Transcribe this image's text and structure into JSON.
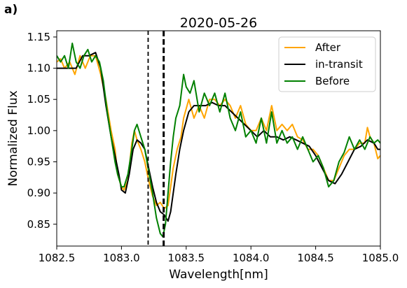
{
  "panel_label": "a)",
  "chart_data": {
    "type": "line",
    "title": "2020-05-26",
    "xlabel": "Wavelength[nm]",
    "ylabel": "Normalized Flux",
    "xlim": [
      1082.5,
      1085.0
    ],
    "ylim": [
      0.815,
      1.16
    ],
    "xticks": [
      1082.5,
      1083.0,
      1083.5,
      1084.0,
      1084.5,
      1085.0
    ],
    "xtick_labels": [
      "1082.5",
      "1083.0",
      "1083.5",
      "1084.0",
      "1084.5",
      "1085.0"
    ],
    "yticks": [
      0.85,
      0.9,
      0.95,
      1.0,
      1.05,
      1.1,
      1.15
    ],
    "ytick_labels": [
      "0.85",
      "0.90",
      "0.95",
      "1.00",
      "1.05",
      "1.10",
      "1.15"
    ],
    "grid": false,
    "legend_position": "top-right",
    "vlines": [
      {
        "x": 1083.206,
        "style": "dashed"
      },
      {
        "x": 1083.326,
        "style": "dashed-thick"
      }
    ],
    "series": [
      {
        "name": "After",
        "color": "#FFA500",
        "points": [
          [
            1082.5,
            1.11
          ],
          [
            1082.53,
            1.115
          ],
          [
            1082.56,
            1.1
          ],
          [
            1082.6,
            1.11
          ],
          [
            1082.64,
            1.09
          ],
          [
            1082.68,
            1.12
          ],
          [
            1082.72,
            1.1
          ],
          [
            1082.76,
            1.12
          ],
          [
            1082.8,
            1.12
          ],
          [
            1082.84,
            1.09
          ],
          [
            1082.88,
            1.05
          ],
          [
            1082.92,
            1.0
          ],
          [
            1082.95,
            0.97
          ],
          [
            1082.97,
            0.93
          ],
          [
            1083.0,
            0.91
          ],
          [
            1083.02,
            0.905
          ],
          [
            1083.05,
            0.92
          ],
          [
            1083.08,
            0.98
          ],
          [
            1083.1,
            1.0
          ],
          [
            1083.12,
            0.985
          ],
          [
            1083.15,
            0.97
          ],
          [
            1083.18,
            0.95
          ],
          [
            1083.21,
            0.92
          ],
          [
            1083.24,
            0.895
          ],
          [
            1083.27,
            0.88
          ],
          [
            1083.3,
            0.885
          ],
          [
            1083.33,
            0.875
          ],
          [
            1083.36,
            0.88
          ],
          [
            1083.38,
            0.91
          ],
          [
            1083.4,
            0.94
          ],
          [
            1083.43,
            0.97
          ],
          [
            1083.46,
            0.99
          ],
          [
            1083.48,
            1.02
          ],
          [
            1083.52,
            1.05
          ],
          [
            1083.56,
            1.02
          ],
          [
            1083.6,
            1.04
          ],
          [
            1083.64,
            1.02
          ],
          [
            1083.68,
            1.05
          ],
          [
            1083.72,
            1.05
          ],
          [
            1083.76,
            1.04
          ],
          [
            1083.8,
            1.05
          ],
          [
            1083.84,
            1.04
          ],
          [
            1083.88,
            1.02
          ],
          [
            1083.92,
            1.04
          ],
          [
            1083.96,
            1.01
          ],
          [
            1084.0,
            1.0
          ],
          [
            1084.04,
            1.0
          ],
          [
            1084.08,
            1.02
          ],
          [
            1084.12,
            1.0
          ],
          [
            1084.16,
            1.04
          ],
          [
            1084.2,
            1.0
          ],
          [
            1084.24,
            1.01
          ],
          [
            1084.28,
            1.0
          ],
          [
            1084.32,
            1.01
          ],
          [
            1084.36,
            0.99
          ],
          [
            1084.4,
            0.985
          ],
          [
            1084.44,
            0.97
          ],
          [
            1084.48,
            0.97
          ],
          [
            1084.52,
            0.96
          ],
          [
            1084.56,
            0.94
          ],
          [
            1084.6,
            0.92
          ],
          [
            1084.64,
            0.92
          ],
          [
            1084.68,
            0.94
          ],
          [
            1084.72,
            0.96
          ],
          [
            1084.76,
            0.97
          ],
          [
            1084.8,
            0.97
          ],
          [
            1084.84,
            0.98
          ],
          [
            1084.88,
            0.98
          ],
          [
            1084.9,
            1.005
          ],
          [
            1084.92,
            0.99
          ],
          [
            1084.95,
            0.98
          ],
          [
            1084.98,
            0.955
          ],
          [
            1085.0,
            0.96
          ]
        ]
      },
      {
        "name": "in-transit",
        "color": "#000000",
        "points": [
          [
            1082.5,
            1.1
          ],
          [
            1082.55,
            1.1
          ],
          [
            1082.6,
            1.1
          ],
          [
            1082.65,
            1.1
          ],
          [
            1082.7,
            1.12
          ],
          [
            1082.75,
            1.12
          ],
          [
            1082.8,
            1.125
          ],
          [
            1082.84,
            1.1
          ],
          [
            1082.88,
            1.04
          ],
          [
            1082.92,
            0.99
          ],
          [
            1082.95,
            0.96
          ],
          [
            1082.98,
            0.93
          ],
          [
            1083.0,
            0.905
          ],
          [
            1083.03,
            0.9
          ],
          [
            1083.06,
            0.93
          ],
          [
            1083.09,
            0.97
          ],
          [
            1083.12,
            0.985
          ],
          [
            1083.15,
            0.98
          ],
          [
            1083.18,
            0.97
          ],
          [
            1083.21,
            0.94
          ],
          [
            1083.24,
            0.91
          ],
          [
            1083.27,
            0.885
          ],
          [
            1083.3,
            0.87
          ],
          [
            1083.33,
            0.865
          ],
          [
            1083.36,
            0.855
          ],
          [
            1083.38,
            0.87
          ],
          [
            1083.4,
            0.9
          ],
          [
            1083.42,
            0.93
          ],
          [
            1083.45,
            0.97
          ],
          [
            1083.48,
            1.0
          ],
          [
            1083.52,
            1.03
          ],
          [
            1083.56,
            1.04
          ],
          [
            1083.6,
            1.04
          ],
          [
            1083.65,
            1.04
          ],
          [
            1083.7,
            1.045
          ],
          [
            1083.75,
            1.04
          ],
          [
            1083.8,
            1.04
          ],
          [
            1083.85,
            1.03
          ],
          [
            1083.9,
            1.02
          ],
          [
            1083.95,
            1.01
          ],
          [
            1084.0,
            1.0
          ],
          [
            1084.05,
            0.99
          ],
          [
            1084.1,
            1.0
          ],
          [
            1084.15,
            0.99
          ],
          [
            1084.2,
            0.99
          ],
          [
            1084.25,
            0.985
          ],
          [
            1084.3,
            0.99
          ],
          [
            1084.35,
            0.985
          ],
          [
            1084.4,
            0.98
          ],
          [
            1084.45,
            0.975
          ],
          [
            1084.5,
            0.96
          ],
          [
            1084.55,
            0.94
          ],
          [
            1084.6,
            0.92
          ],
          [
            1084.65,
            0.915
          ],
          [
            1084.7,
            0.93
          ],
          [
            1084.75,
            0.95
          ],
          [
            1084.8,
            0.97
          ],
          [
            1084.85,
            0.975
          ],
          [
            1084.9,
            0.985
          ],
          [
            1084.95,
            0.98
          ],
          [
            1084.98,
            0.97
          ],
          [
            1085.0,
            0.97
          ]
        ]
      },
      {
        "name": "Before",
        "color": "#008000",
        "points": [
          [
            1082.5,
            1.12
          ],
          [
            1082.53,
            1.11
          ],
          [
            1082.56,
            1.12
          ],
          [
            1082.59,
            1.1
          ],
          [
            1082.62,
            1.14
          ],
          [
            1082.65,
            1.11
          ],
          [
            1082.68,
            1.1
          ],
          [
            1082.71,
            1.12
          ],
          [
            1082.74,
            1.13
          ],
          [
            1082.77,
            1.11
          ],
          [
            1082.8,
            1.12
          ],
          [
            1082.83,
            1.11
          ],
          [
            1082.86,
            1.08
          ],
          [
            1082.89,
            1.03
          ],
          [
            1082.92,
            0.99
          ],
          [
            1082.95,
            0.95
          ],
          [
            1082.97,
            0.93
          ],
          [
            1083.0,
            0.91
          ],
          [
            1083.02,
            0.91
          ],
          [
            1083.05,
            0.93
          ],
          [
            1083.08,
            0.97
          ],
          [
            1083.1,
            1.0
          ],
          [
            1083.12,
            1.01
          ],
          [
            1083.15,
            0.99
          ],
          [
            1083.18,
            0.97
          ],
          [
            1083.21,
            0.935
          ],
          [
            1083.24,
            0.9
          ],
          [
            1083.27,
            0.86
          ],
          [
            1083.3,
            0.835
          ],
          [
            1083.32,
            0.83
          ],
          [
            1083.34,
            0.85
          ],
          [
            1083.36,
            0.9
          ],
          [
            1083.38,
            0.95
          ],
          [
            1083.4,
            0.99
          ],
          [
            1083.42,
            1.02
          ],
          [
            1083.45,
            1.04
          ],
          [
            1083.48,
            1.09
          ],
          [
            1083.5,
            1.07
          ],
          [
            1083.53,
            1.06
          ],
          [
            1083.56,
            1.08
          ],
          [
            1083.6,
            1.03
          ],
          [
            1083.64,
            1.06
          ],
          [
            1083.68,
            1.04
          ],
          [
            1083.72,
            1.06
          ],
          [
            1083.76,
            1.03
          ],
          [
            1083.8,
            1.06
          ],
          [
            1083.84,
            1.02
          ],
          [
            1083.88,
            1.0
          ],
          [
            1083.92,
            1.03
          ],
          [
            1083.96,
            0.99
          ],
          [
            1084.0,
            1.0
          ],
          [
            1084.04,
            0.98
          ],
          [
            1084.08,
            1.02
          ],
          [
            1084.12,
            0.98
          ],
          [
            1084.16,
            1.03
          ],
          [
            1084.2,
            0.98
          ],
          [
            1084.24,
            1.0
          ],
          [
            1084.28,
            0.98
          ],
          [
            1084.32,
            0.99
          ],
          [
            1084.36,
            0.97
          ],
          [
            1084.4,
            0.99
          ],
          [
            1084.44,
            0.97
          ],
          [
            1084.48,
            0.95
          ],
          [
            1084.52,
            0.96
          ],
          [
            1084.56,
            0.94
          ],
          [
            1084.6,
            0.91
          ],
          [
            1084.64,
            0.92
          ],
          [
            1084.68,
            0.95
          ],
          [
            1084.72,
            0.965
          ],
          [
            1084.76,
            0.99
          ],
          [
            1084.8,
            0.97
          ],
          [
            1084.84,
            0.985
          ],
          [
            1084.88,
            0.97
          ],
          [
            1084.92,
            0.99
          ],
          [
            1084.95,
            0.98
          ],
          [
            1084.98,
            0.985
          ],
          [
            1085.0,
            0.98
          ]
        ]
      }
    ]
  }
}
